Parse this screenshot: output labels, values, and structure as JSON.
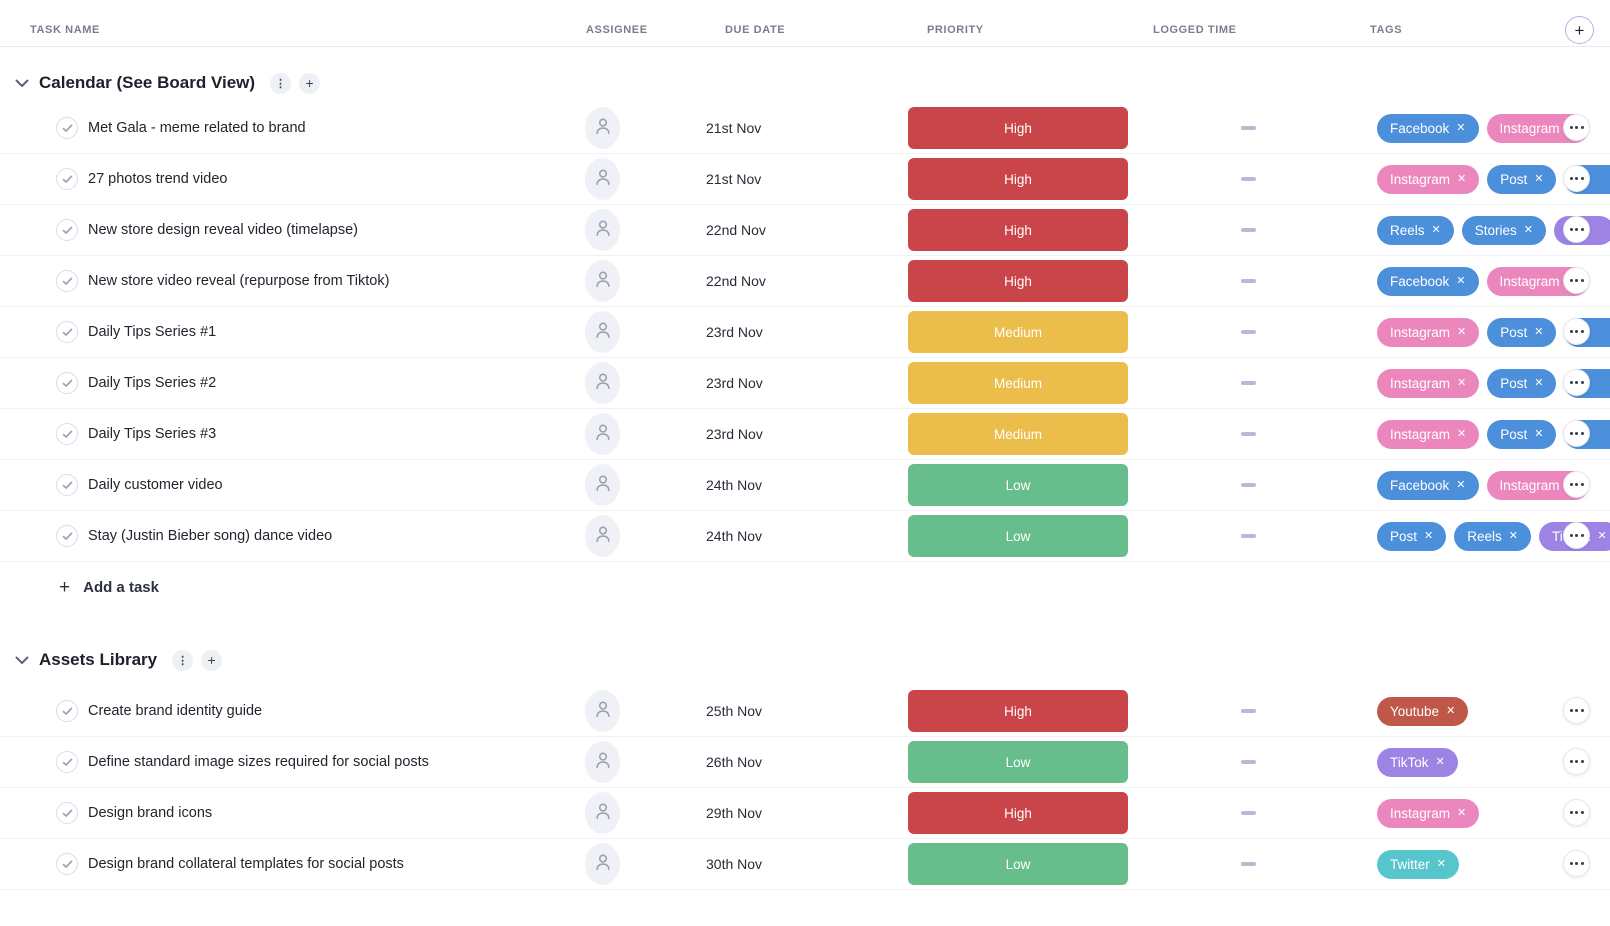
{
  "header": {
    "columns": [
      "TASK NAME",
      "ASSIGNEE",
      "DUE DATE",
      "PRIORITY",
      "LOGGED TIME",
      "TAGS"
    ],
    "add_field_button": "+"
  },
  "priority_colors": {
    "High": "#CA4549",
    "Medium": "#EBBD4B",
    "Low": "#68BD8D"
  },
  "tag_colors": {
    "blue": "#4C8FDA",
    "pink": "#EC87BD",
    "purple": "#9D84E4",
    "red": "#BF5849",
    "teal": "#56C6CC"
  },
  "icons": {
    "remove_tag": "✕",
    "section_menu": "⋮",
    "section_add": "+",
    "add_task_plus": "+"
  },
  "sections": [
    {
      "title": "Calendar (See Board View)",
      "add_task_label": "Add a task",
      "tasks": [
        {
          "name": "Met Gala - meme related to brand",
          "due": "21st Nov",
          "priority": "High",
          "logged": "—",
          "tags": [
            {
              "label": "Facebook",
              "color": "blue"
            },
            {
              "label": "Instagram",
              "color": "pink"
            }
          ]
        },
        {
          "name": "27 photos trend video",
          "due": "21st Nov",
          "priority": "High",
          "logged": "—",
          "tags": [
            {
              "label": "Instagram",
              "color": "pink"
            },
            {
              "label": "Post",
              "color": "blue"
            },
            {
              "label": "",
              "color": "blue",
              "cut": true
            }
          ]
        },
        {
          "name": "New store design reveal video (timelapse)",
          "due": "22nd Nov",
          "priority": "High",
          "logged": "—",
          "tags": [
            {
              "label": "Reels",
              "color": "blue"
            },
            {
              "label": "Stories",
              "color": "blue"
            },
            {
              "label": "",
              "color": "purple",
              "cut": true
            }
          ]
        },
        {
          "name": "New store video reveal (repurpose from Tiktok)",
          "due": "22nd Nov",
          "priority": "High",
          "logged": "—",
          "tags": [
            {
              "label": "Facebook",
              "color": "blue"
            },
            {
              "label": "Instagram",
              "color": "pink"
            }
          ]
        },
        {
          "name": "Daily Tips Series #1",
          "due": "23rd Nov",
          "priority": "Medium",
          "logged": "—",
          "tags": [
            {
              "label": "Instagram",
              "color": "pink"
            },
            {
              "label": "Post",
              "color": "blue"
            },
            {
              "label": "",
              "color": "blue",
              "cut": true
            }
          ]
        },
        {
          "name": "Daily Tips Series #2",
          "due": "23rd Nov",
          "priority": "Medium",
          "logged": "—",
          "tags": [
            {
              "label": "Instagram",
              "color": "pink"
            },
            {
              "label": "Post",
              "color": "blue"
            },
            {
              "label": "",
              "color": "blue",
              "cut": true
            }
          ]
        },
        {
          "name": "Daily Tips Series #3",
          "due": "23rd Nov",
          "priority": "Medium",
          "logged": "—",
          "tags": [
            {
              "label": "Instagram",
              "color": "pink"
            },
            {
              "label": "Post",
              "color": "blue"
            },
            {
              "label": "",
              "color": "blue",
              "cut": true
            }
          ]
        },
        {
          "name": "Daily customer video",
          "due": "24th Nov",
          "priority": "Low",
          "logged": "—",
          "tags": [
            {
              "label": "Facebook",
              "color": "blue"
            },
            {
              "label": "Instagram",
              "color": "pink"
            }
          ]
        },
        {
          "name": "Stay (Justin Bieber song) dance video",
          "due": "24th Nov",
          "priority": "Low",
          "logged": "—",
          "tags": [
            {
              "label": "Post",
              "color": "blue"
            },
            {
              "label": "Reels",
              "color": "blue"
            },
            {
              "label": "TikTok",
              "color": "purple",
              "cut": true
            }
          ]
        }
      ]
    },
    {
      "title": "Assets Library",
      "add_task_label": null,
      "tasks": [
        {
          "name": "Create brand identity guide",
          "due": "25th Nov",
          "priority": "High",
          "logged": "—",
          "tags": [
            {
              "label": "Youtube",
              "color": "red"
            }
          ]
        },
        {
          "name": "Define standard image sizes required for social posts",
          "due": "26th Nov",
          "priority": "Low",
          "logged": "—",
          "tags": [
            {
              "label": "TikTok",
              "color": "purple"
            }
          ]
        },
        {
          "name": "Design brand icons",
          "due": "29th Nov",
          "priority": "High",
          "logged": "—",
          "tags": [
            {
              "label": "Instagram",
              "color": "pink"
            }
          ]
        },
        {
          "name": "Design brand collateral templates for social posts",
          "due": "30th Nov",
          "priority": "Low",
          "logged": "—",
          "tags": [
            {
              "label": "Twitter",
              "color": "teal"
            }
          ]
        }
      ]
    }
  ]
}
